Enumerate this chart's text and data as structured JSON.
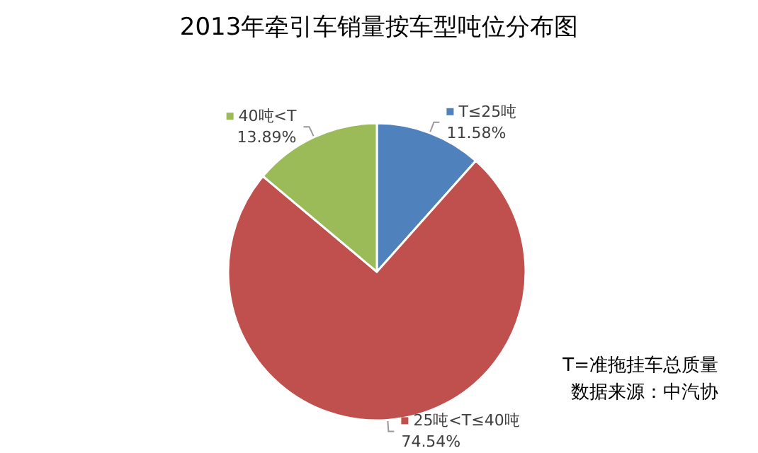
{
  "chart_data": {
    "type": "pie",
    "title": "2013年牵引车销量按车型吨位分布图",
    "categories": [
      "T≤25吨",
      "25吨<T≤40吨",
      "40吨<T"
    ],
    "values": [
      11.58,
      74.54,
      13.89
    ],
    "colors": [
      "#4f81bd",
      "#c0504d",
      "#9bbb59"
    ],
    "value_labels": [
      "11.58%",
      "74.54%",
      "13.89%"
    ],
    "legend": "top",
    "annotations": [
      "T=准拖挂车总质量",
      "数据来源：中汽协"
    ]
  }
}
